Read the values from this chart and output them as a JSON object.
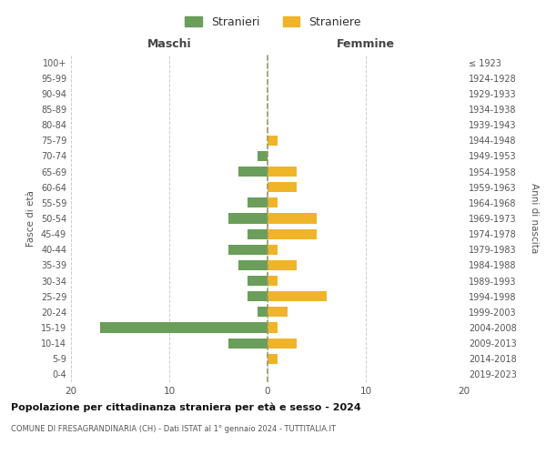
{
  "age_groups": [
    "0-4",
    "5-9",
    "10-14",
    "15-19",
    "20-24",
    "25-29",
    "30-34",
    "35-39",
    "40-44",
    "45-49",
    "50-54",
    "55-59",
    "60-64",
    "65-69",
    "70-74",
    "75-79",
    "80-84",
    "85-89",
    "90-94",
    "95-99",
    "100+"
  ],
  "birth_years": [
    "2019-2023",
    "2014-2018",
    "2009-2013",
    "2004-2008",
    "1999-2003",
    "1994-1998",
    "1989-1993",
    "1984-1988",
    "1979-1983",
    "1974-1978",
    "1969-1973",
    "1964-1968",
    "1959-1963",
    "1954-1958",
    "1949-1953",
    "1944-1948",
    "1939-1943",
    "1934-1938",
    "1929-1933",
    "1924-1928",
    "≤ 1923"
  ],
  "maschi": [
    0,
    0,
    4,
    17,
    1,
    2,
    2,
    3,
    4,
    2,
    4,
    2,
    0,
    3,
    1,
    0,
    0,
    0,
    0,
    0,
    0
  ],
  "femmine": [
    0,
    1,
    3,
    1,
    2,
    6,
    1,
    3,
    1,
    5,
    5,
    1,
    3,
    3,
    0,
    1,
    0,
    0,
    0,
    0,
    0
  ],
  "color_maschi": "#6a9e5a",
  "color_femmine": "#f0b429",
  "title": "Popolazione per cittadinanza straniera per età e sesso - 2024",
  "subtitle": "COMUNE DI FRESAGRANDINARIA (CH) - Dati ISTAT al 1° gennaio 2024 - TUTTITALIA.IT",
  "ylabel_left": "Fasce di età",
  "ylabel_right": "Anni di nascita",
  "xlabel_maschi": "Maschi",
  "xlabel_femmine": "Femmine",
  "legend_maschi": "Stranieri",
  "legend_femmine": "Straniere",
  "xlim": 20,
  "background_color": "#ffffff",
  "grid_color": "#cccccc"
}
